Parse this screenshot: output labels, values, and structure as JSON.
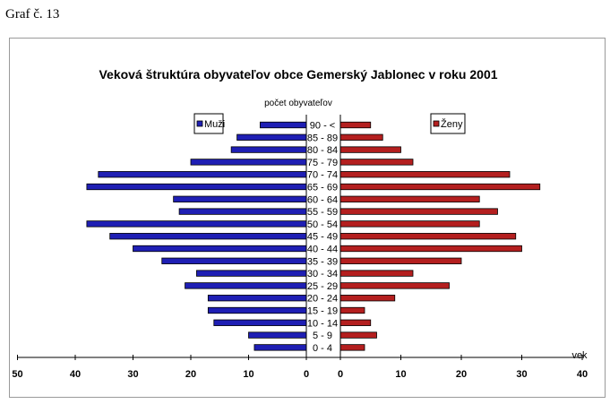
{
  "caption": "Graf č. 13",
  "chart_data": {
    "type": "bar",
    "orientation": "horizontal-population-pyramid",
    "title": "Veková štruktúra obyvateľov obce Gemerský Jablonec v roku 2001",
    "subtitle": "počet obyvateľov",
    "xlabel": "vek",
    "categories": [
      "90 - <",
      "85 - 89",
      "80 - 84",
      "75 - 79",
      "70 - 74",
      "65 - 69",
      "60 - 64",
      "55 - 59",
      "50 - 54",
      "45 - 49",
      "40 - 44",
      "35 - 39",
      "30 - 34",
      "25 - 29",
      "20 - 24",
      "15 - 19",
      "10 - 14",
      "5 - 9",
      "0 - 4"
    ],
    "series": [
      {
        "name": "Muži",
        "color": "#1f1fb4",
        "side": "left",
        "values": [
          8,
          12,
          13,
          20,
          36,
          38,
          23,
          22,
          38,
          34,
          30,
          25,
          19,
          21,
          17,
          17,
          16,
          10,
          9
        ]
      },
      {
        "name": "Ženy",
        "color": "#b41f1f",
        "side": "right",
        "values": [
          5,
          7,
          10,
          12,
          28,
          33,
          23,
          26,
          23,
          29,
          30,
          20,
          12,
          18,
          9,
          4,
          5,
          6,
          4
        ]
      }
    ],
    "left_axis_ticks": [
      "50",
      "40",
      "30",
      "20",
      "10",
      "0"
    ],
    "right_axis_ticks": [
      "0",
      "10",
      "20",
      "30",
      "40"
    ],
    "left_xlim": [
      0,
      50
    ],
    "right_xlim": [
      0,
      40
    ],
    "legend": "top-left and top-right",
    "grid": false
  }
}
